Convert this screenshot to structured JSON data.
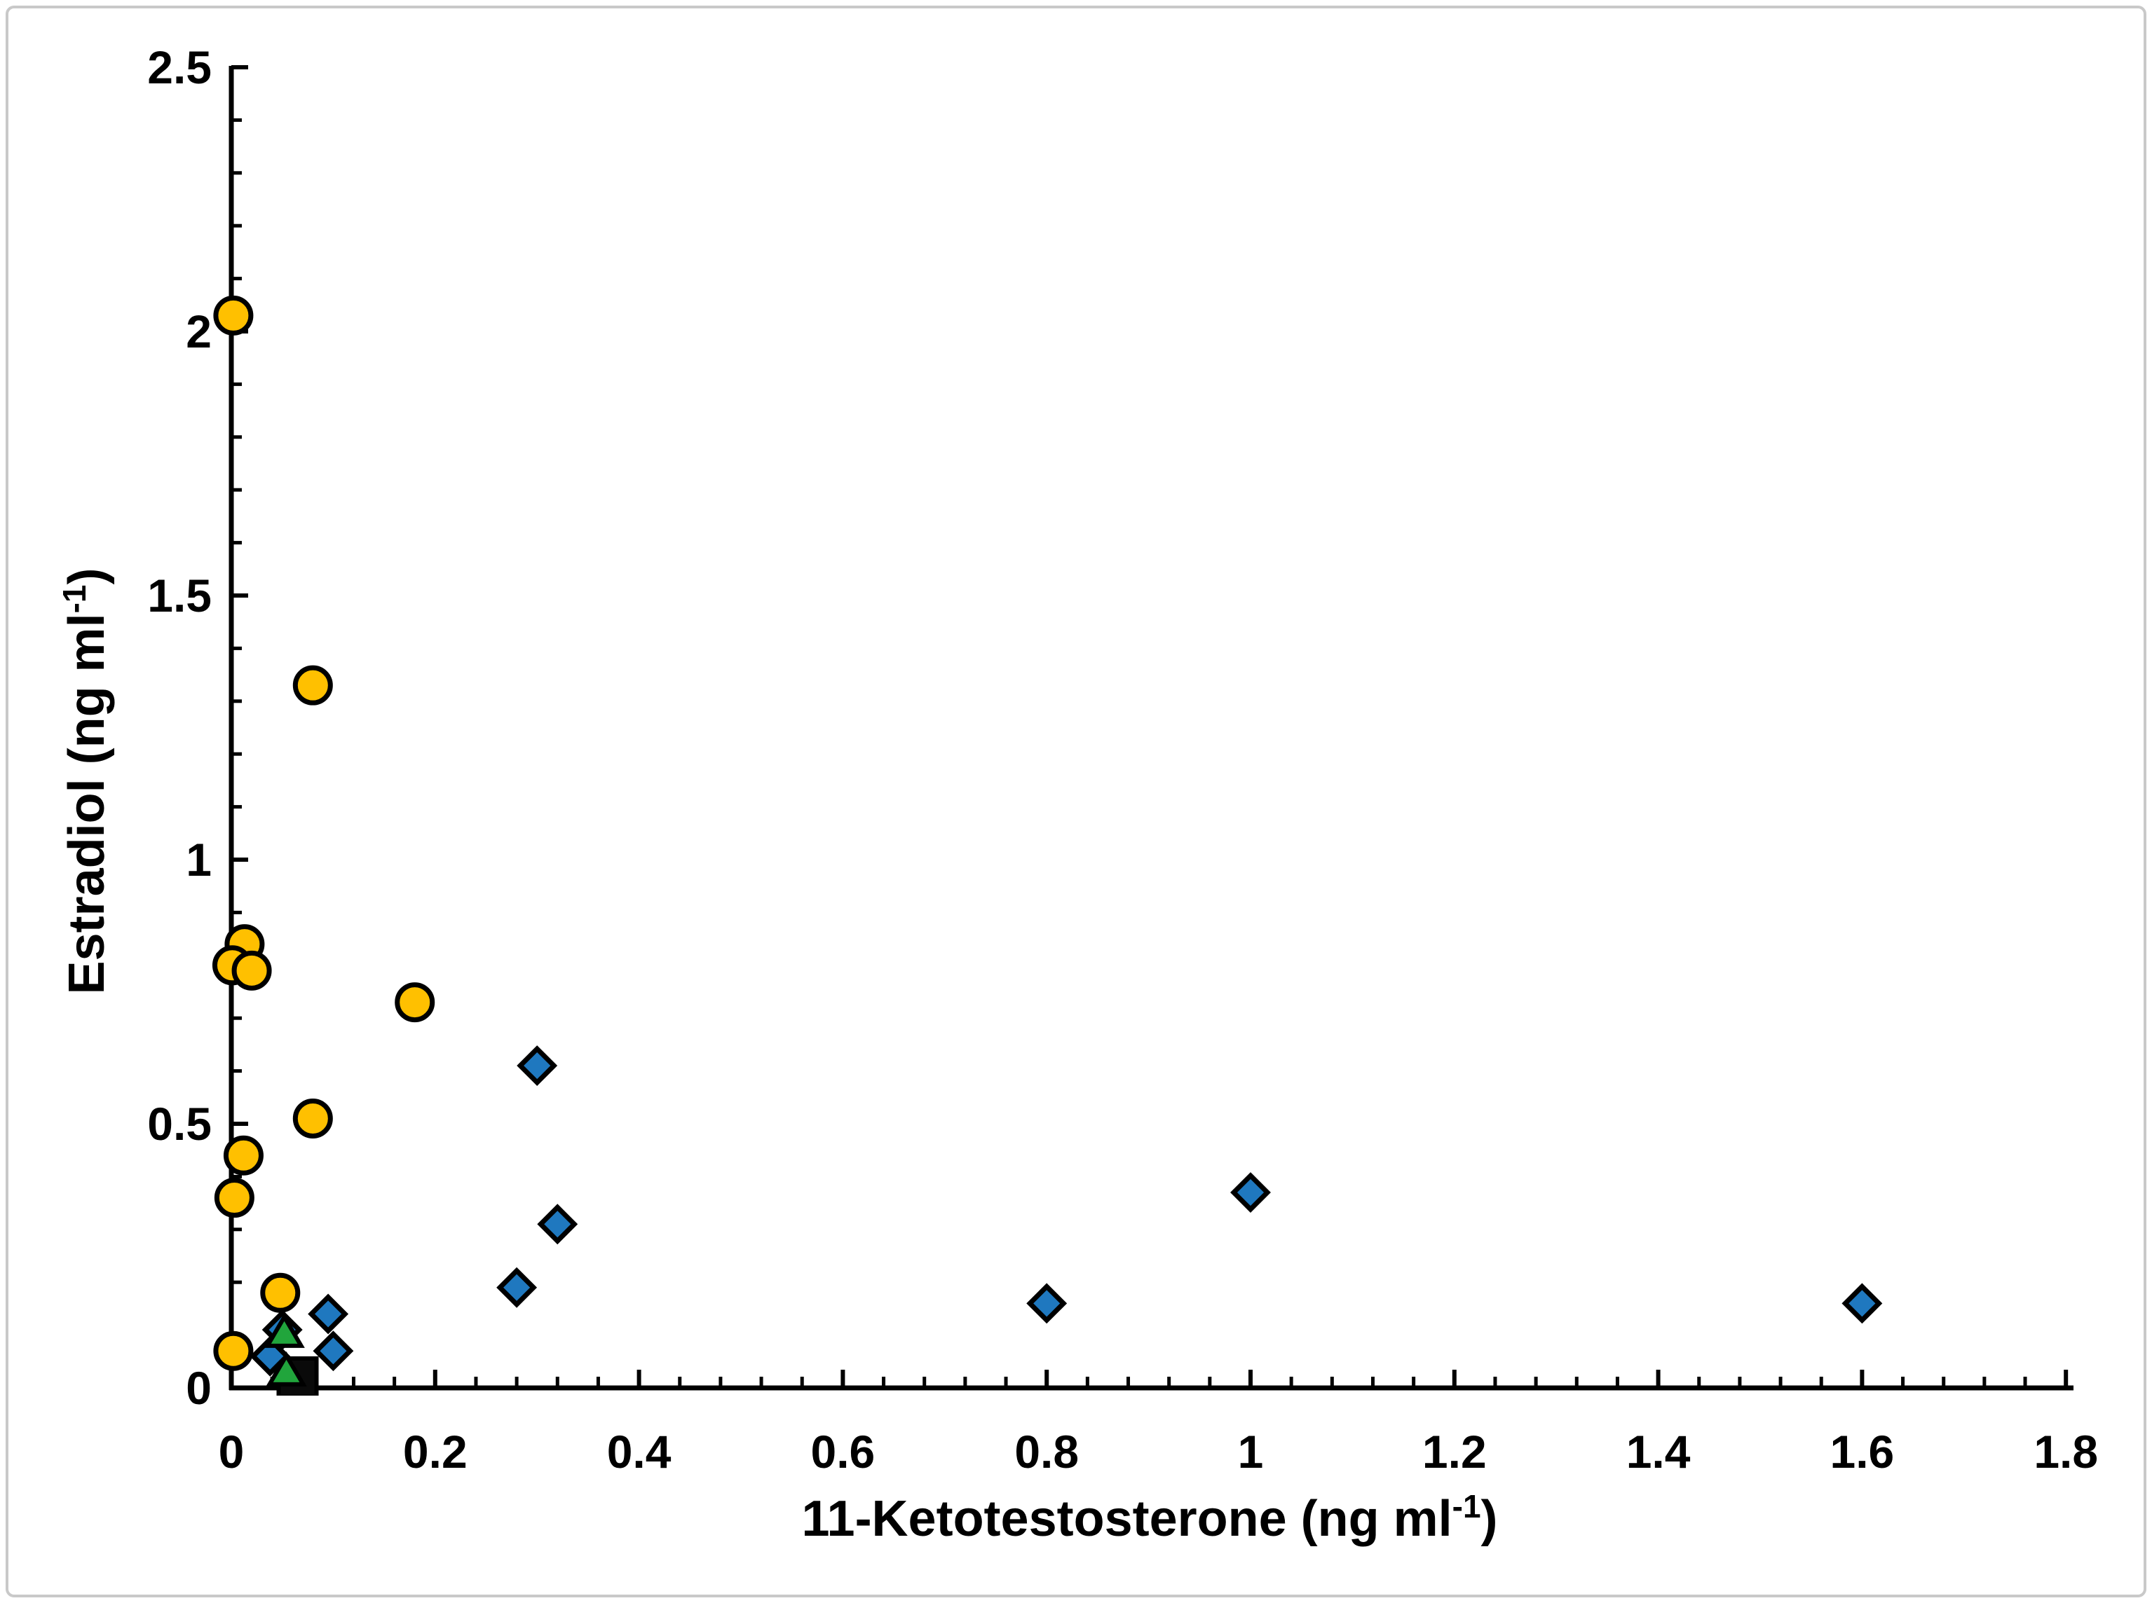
{
  "figure": {
    "background": "#ffffff",
    "border_color": "#c9c9c9",
    "axis_color": "#000000"
  },
  "chart_data": {
    "type": "scatter",
    "title": "",
    "xlabel": {
      "prefix": "11-Ketotestosterone (ng ml",
      "superscript": "-1",
      "suffix": ")"
    },
    "ylabel": {
      "prefix": "Estradiol (ng ml",
      "superscript": "-1",
      "suffix": ")"
    },
    "xlim": [
      0,
      1.8
    ],
    "ylim": [
      0,
      2.5
    ],
    "grid": false,
    "legend": "none",
    "x_ticks": [
      {
        "value": 0,
        "label": "0"
      },
      {
        "value": 0.2,
        "label": "0.2"
      },
      {
        "value": 0.4,
        "label": "0.4"
      },
      {
        "value": 0.6,
        "label": "0.6"
      },
      {
        "value": 0.8,
        "label": "0.8"
      },
      {
        "value": 1,
        "label": "1"
      },
      {
        "value": 1.2,
        "label": "1.2"
      },
      {
        "value": 1.4,
        "label": "1.4"
      },
      {
        "value": 1.6,
        "label": "1.6"
      },
      {
        "value": 1.8,
        "label": "1.8"
      }
    ],
    "x_minor_step": 0.04,
    "y_ticks": [
      {
        "value": 0,
        "label": "0"
      },
      {
        "value": 0.5,
        "label": "0.5"
      },
      {
        "value": 1,
        "label": "1"
      },
      {
        "value": 1.5,
        "label": "1.5"
      },
      {
        "value": 2,
        "label": "2"
      },
      {
        "value": 2.5,
        "label": "2.5"
      }
    ],
    "y_minor_step": 0.1,
    "series": [
      {
        "name": "black-squares",
        "marker": "square",
        "fill": "#0a0a0a",
        "stroke": "#000000",
        "points": [
          [
            0.065,
            0.02
          ]
        ]
      },
      {
        "name": "blue-diamonds",
        "marker": "diamond",
        "fill": "#1F78BF",
        "stroke": "#000000",
        "points": [
          [
            0.3,
            0.61
          ],
          [
            0.32,
            0.31
          ],
          [
            0.28,
            0.19
          ],
          [
            0.095,
            0.14
          ],
          [
            0.1,
            0.07
          ],
          [
            0.05,
            0.11
          ],
          [
            0.038,
            0.06
          ],
          [
            0.8,
            0.16
          ],
          [
            1.0,
            0.37
          ],
          [
            1.6,
            0.16
          ]
        ]
      },
      {
        "name": "green-triangles",
        "marker": "triangle",
        "fill": "#21A53C",
        "stroke": "#000000",
        "points": [
          [
            0.052,
            0.105
          ],
          [
            0.054,
            0.032
          ]
        ]
      },
      {
        "name": "yellow-circles",
        "marker": "circle",
        "fill": "#FFC000",
        "stroke": "#000000",
        "points": [
          [
            0.002,
            2.03
          ],
          [
            0.08,
            1.33
          ],
          [
            0.013,
            0.84
          ],
          [
            0.001,
            0.8
          ],
          [
            0.02,
            0.79
          ],
          [
            0.18,
            0.73
          ],
          [
            0.08,
            0.51
          ],
          [
            0.012,
            0.44
          ],
          [
            0.003,
            0.36
          ],
          [
            0.048,
            0.18
          ],
          [
            0.002,
            0.07
          ]
        ]
      }
    ]
  }
}
